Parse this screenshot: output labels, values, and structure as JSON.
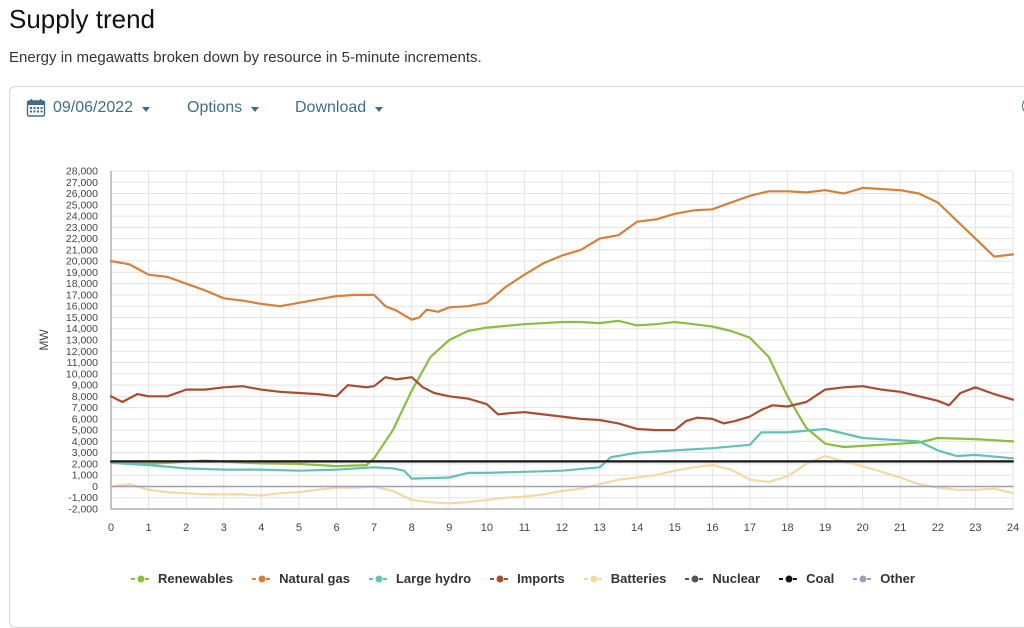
{
  "page": {
    "title": "Supply trend",
    "subtitle": "Energy in megawatts broken down by resource in 5-minute increments."
  },
  "toolbar": {
    "date_label": "09/06/2022",
    "options_label": "Options",
    "download_label": "Download"
  },
  "colors": {
    "renewables": "#8cbd3f",
    "natural_gas": "#d6813a",
    "large_hydro": "#62c1b8",
    "imports": "#a84d32",
    "batteries": "#f3d9a4",
    "nuclear": "#555555",
    "coal": "#111111",
    "other": "#9e9eb8",
    "accent": "#3e6e87"
  },
  "chart_data": {
    "type": "line",
    "title": "",
    "xlabel": "",
    "ylabel": "MW",
    "xlim": [
      0,
      24
    ],
    "ylim": [
      -2000,
      28000
    ],
    "x_ticks": [
      "0",
      "1",
      "2",
      "3",
      "4",
      "5",
      "6",
      "7",
      "8",
      "9",
      "10",
      "11",
      "12",
      "13",
      "14",
      "15",
      "16",
      "17",
      "18",
      "19",
      "20",
      "21",
      "22",
      "23",
      "24"
    ],
    "y_ticks": [
      "28,000",
      "27,000",
      "26,000",
      "25,000",
      "24,000",
      "23,000",
      "22,000",
      "21,000",
      "20,000",
      "19,000",
      "18,000",
      "17,000",
      "16,000",
      "15,000",
      "14,000",
      "13,000",
      "12,000",
      "11,000",
      "10,000",
      "9,000",
      "8,000",
      "7,000",
      "6,000",
      "5,000",
      "4,000",
      "3,000",
      "2,000",
      "1,000",
      "0",
      "-1,000",
      "-2,000"
    ],
    "grid": true,
    "legend_position": "bottom",
    "series": [
      {
        "key": "renewables",
        "name": "Renewables",
        "x": [
          0,
          1,
          2,
          2.5,
          3,
          4,
          5,
          6,
          6.8,
          7,
          7.5,
          8,
          8.5,
          9,
          9.5,
          10,
          11,
          12,
          12.5,
          13,
          13.5,
          14,
          14.5,
          15,
          15.5,
          16,
          16.5,
          17,
          17.5,
          18,
          18.5,
          19,
          19.5,
          20,
          21,
          21.5,
          22,
          23,
          24
        ],
        "y": [
          2100,
          2000,
          2200,
          2300,
          2200,
          2050,
          2000,
          1800,
          1900,
          2500,
          5000,
          8500,
          11500,
          13000,
          13800,
          14100,
          14400,
          14600,
          14600,
          14500,
          14700,
          14300,
          14400,
          14600,
          14400,
          14200,
          13800,
          13200,
          11500,
          8000,
          5200,
          3800,
          3500,
          3600,
          3800,
          3900,
          4300,
          4200,
          4000
        ]
      },
      {
        "key": "natural_gas",
        "name": "Natural gas",
        "x": [
          0,
          0.5,
          1,
          1.5,
          2,
          2.5,
          3,
          3.5,
          4,
          4.5,
          5,
          5.5,
          6,
          6.5,
          7,
          7.3,
          7.6,
          8,
          8.2,
          8.4,
          8.7,
          9,
          9.5,
          10,
          10.5,
          11,
          11.5,
          12,
          12.5,
          13,
          13.5,
          14,
          14.5,
          15,
          15.5,
          16,
          16.5,
          17,
          17.5,
          18,
          18.5,
          19,
          19.5,
          20,
          20.5,
          21,
          21.5,
          22,
          22.5,
          23,
          23.5,
          24
        ],
        "y": [
          20000,
          19700,
          18800,
          18600,
          18000,
          17400,
          16700,
          16500,
          16200,
          16000,
          16300,
          16600,
          16900,
          17000,
          17000,
          16000,
          15600,
          14800,
          15000,
          15700,
          15500,
          15900,
          16000,
          16300,
          17700,
          18800,
          19800,
          20500,
          21000,
          22000,
          22300,
          23500,
          23700,
          24200,
          24500,
          24600,
          25200,
          25800,
          26200,
          26200,
          26100,
          26300,
          26000,
          26500,
          26400,
          26300,
          26000,
          25200,
          23600,
          22000,
          20400,
          20600
        ]
      },
      {
        "key": "large_hydro",
        "name": "Large hydro",
        "x": [
          0,
          1,
          2,
          3,
          4,
          5,
          6,
          7,
          7.5,
          7.8,
          8,
          9,
          9.5,
          10,
          11,
          12,
          13,
          13.3,
          14,
          15,
          16,
          17,
          17.3,
          18,
          19,
          19.5,
          20,
          21,
          21.5,
          22,
          22.5,
          23,
          24
        ],
        "y": [
          2100,
          1900,
          1600,
          1500,
          1500,
          1400,
          1500,
          1700,
          1600,
          1400,
          700,
          800,
          1200,
          1200,
          1300,
          1400,
          1700,
          2600,
          3000,
          3200,
          3400,
          3700,
          4800,
          4800,
          5100,
          4700,
          4300,
          4100,
          4000,
          3200,
          2700,
          2800,
          2500
        ]
      },
      {
        "key": "imports",
        "name": "Imports",
        "x": [
          0,
          0.3,
          0.7,
          1,
          1.5,
          2,
          2.5,
          3,
          3.5,
          4,
          4.5,
          5,
          5.5,
          6,
          6.3,
          6.8,
          7,
          7.3,
          7.6,
          8,
          8.3,
          8.6,
          9,
          9.5,
          10,
          10.3,
          10.6,
          11,
          11.5,
          12,
          12.5,
          13,
          13.5,
          14,
          14.5,
          15,
          15.3,
          15.6,
          16,
          16.3,
          16.6,
          17,
          17.3,
          17.6,
          18,
          18.5,
          19,
          19.5,
          20,
          20.5,
          21,
          21.5,
          22,
          22.3,
          22.6,
          23,
          23.5,
          24
        ],
        "y": [
          8000,
          7500,
          8200,
          8000,
          8000,
          8600,
          8600,
          8800,
          8900,
          8600,
          8400,
          8300,
          8200,
          8000,
          9000,
          8800,
          8900,
          9700,
          9500,
          9700,
          8800,
          8300,
          8000,
          7800,
          7300,
          6400,
          6500,
          6600,
          6400,
          6200,
          6000,
          5900,
          5600,
          5100,
          5000,
          5000,
          5800,
          6100,
          6000,
          5600,
          5800,
          6200,
          6800,
          7200,
          7100,
          7500,
          8600,
          8800,
          8900,
          8600,
          8400,
          8000,
          7600,
          7200,
          8300,
          8800,
          8200,
          7700
        ]
      },
      {
        "key": "batteries",
        "name": "Batteries",
        "x": [
          0,
          0.5,
          1,
          1.5,
          2,
          2.5,
          3,
          3.5,
          4,
          4.5,
          5,
          5.5,
          6,
          6.5,
          7,
          7.5,
          8,
          8.5,
          9,
          9.5,
          10,
          10.5,
          11,
          11.5,
          12,
          12.5,
          13,
          13.5,
          14,
          14.5,
          15,
          15.5,
          16,
          16.5,
          17,
          17.5,
          18,
          18.5,
          19,
          19.5,
          20,
          20.5,
          21,
          21.5,
          22,
          22.5,
          23,
          23.5,
          24
        ],
        "y": [
          0,
          200,
          -300,
          -500,
          -600,
          -700,
          -700,
          -700,
          -800,
          -600,
          -500,
          -300,
          -100,
          -100,
          0,
          -400,
          -1200,
          -1400,
          -1500,
          -1400,
          -1200,
          -1000,
          -900,
          -700,
          -400,
          -200,
          200,
          600,
          800,
          1000,
          1400,
          1700,
          1900,
          1500,
          600,
          400,
          900,
          2000,
          2700,
          2200,
          1800,
          1300,
          800,
          200,
          -100,
          -300,
          -300,
          -200,
          -600
        ]
      },
      {
        "key": "nuclear",
        "name": "Nuclear",
        "x": [
          0,
          24
        ],
        "y": [
          2200,
          2200
        ]
      },
      {
        "key": "coal",
        "name": "Coal",
        "x": [
          0,
          24
        ],
        "y": [
          2250,
          2250
        ]
      },
      {
        "key": "other",
        "name": "Other",
        "x": [
          0,
          24
        ],
        "y": [
          0,
          0
        ]
      }
    ]
  }
}
